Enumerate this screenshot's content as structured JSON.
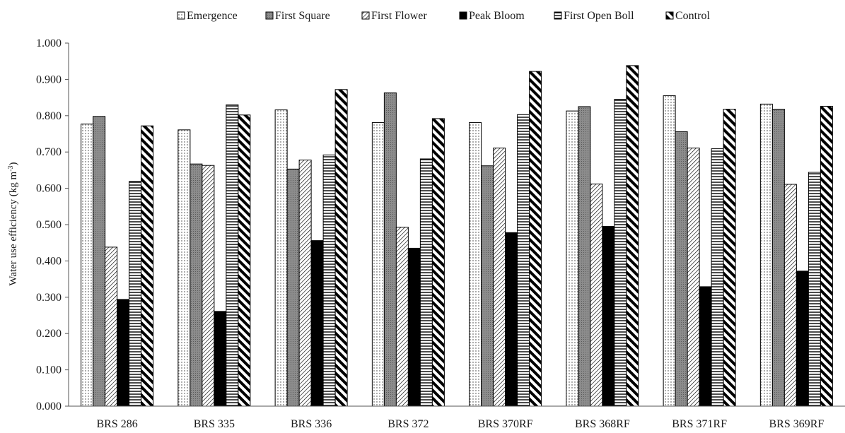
{
  "chart_data": {
    "type": "bar",
    "ylabel_main": "Water use efficiency (kg m",
    "ylabel_sup": "-3",
    "ylabel_tail": ")",
    "ylim": [
      0,
      1.0
    ],
    "ytick_labels": [
      "0.000",
      "0.100",
      "0.200",
      "0.300",
      "0.400",
      "0.500",
      "0.600",
      "0.700",
      "0.800",
      "0.900",
      "1.000"
    ],
    "legend_position": "top",
    "grid": false,
    "categories": [
      "BRS 286",
      "BRS 335",
      "BRS 336",
      "BRS 372",
      "BRS 370RF",
      "BRS 368RF",
      "BRS 371RF",
      "BRS 369RF"
    ],
    "series": [
      {
        "name": "Emergence",
        "pattern": "dots",
        "values": [
          0.777,
          0.761,
          0.816,
          0.781,
          0.781,
          0.813,
          0.855,
          0.832
        ]
      },
      {
        "name": "First Square",
        "pattern": "gray-grid",
        "values": [
          0.798,
          0.667,
          0.653,
          0.863,
          0.662,
          0.825,
          0.756,
          0.818
        ]
      },
      {
        "name": "First Flower",
        "pattern": "diag-down",
        "values": [
          0.438,
          0.663,
          0.678,
          0.493,
          0.711,
          0.612,
          0.711,
          0.611
        ]
      },
      {
        "name": "Peak Bloom",
        "pattern": "solid-black",
        "values": [
          0.294,
          0.261,
          0.456,
          0.435,
          0.478,
          0.495,
          0.329,
          0.372
        ]
      },
      {
        "name": "First Open Boll",
        "pattern": "horiz-lines",
        "values": [
          0.619,
          0.83,
          0.692,
          0.681,
          0.803,
          0.845,
          0.709,
          0.644
        ]
      },
      {
        "name": "Control",
        "pattern": "wide-diag",
        "values": [
          0.772,
          0.802,
          0.872,
          0.792,
          0.922,
          0.938,
          0.818,
          0.826
        ]
      }
    ],
    "colors": {
      "axis": "#555555",
      "bar_outline": "#000000",
      "dark_fill": "#000000",
      "gray_fill": "#8c8c8c"
    }
  }
}
